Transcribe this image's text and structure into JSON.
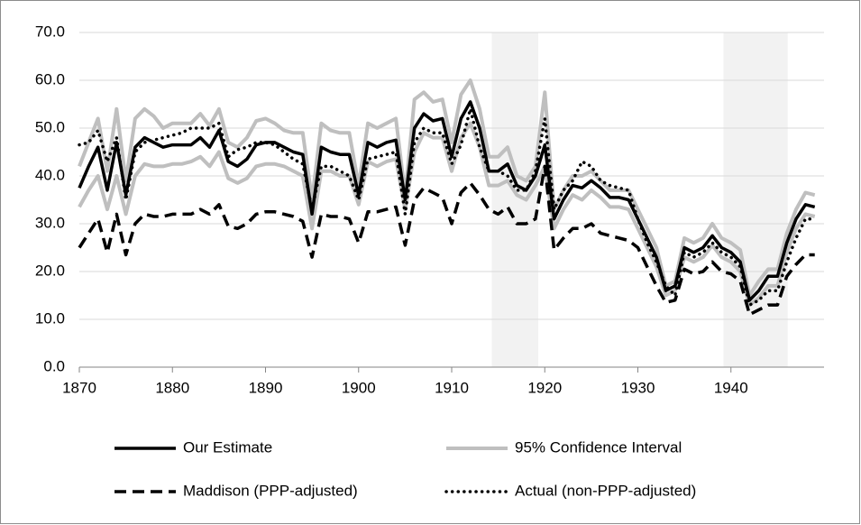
{
  "chart_data": {
    "type": "line",
    "x": [
      1870,
      1871,
      1872,
      1873,
      1874,
      1875,
      1876,
      1877,
      1878,
      1879,
      1880,
      1881,
      1882,
      1883,
      1884,
      1885,
      1886,
      1887,
      1888,
      1889,
      1890,
      1891,
      1892,
      1893,
      1894,
      1895,
      1896,
      1897,
      1898,
      1899,
      1900,
      1901,
      1902,
      1903,
      1904,
      1905,
      1906,
      1907,
      1908,
      1909,
      1910,
      1911,
      1912,
      1913,
      1914,
      1915,
      1916,
      1917,
      1918,
      1919,
      1920,
      1921,
      1922,
      1923,
      1924,
      1925,
      1926,
      1927,
      1928,
      1929,
      1930,
      1931,
      1932,
      1933,
      1934,
      1935,
      1936,
      1937,
      1938,
      1939,
      1940,
      1941,
      1942,
      1943,
      1944,
      1945,
      1946,
      1947,
      1948,
      1949
    ],
    "series": [
      {
        "name": "95% Confidence Interval",
        "color": "#bfbfbf",
        "style": "solid",
        "values": [
          42,
          47,
          52,
          41,
          54,
          39,
          52,
          54,
          52.5,
          50,
          51,
          51,
          51,
          53,
          50.5,
          54,
          47,
          46,
          48,
          51.5,
          52,
          51,
          49.5,
          49,
          49,
          35,
          51,
          49.5,
          49,
          49,
          38,
          51,
          50,
          51,
          52,
          36,
          56,
          57.5,
          55.5,
          56,
          47,
          57,
          60,
          54,
          44,
          44,
          46,
          40,
          39,
          42,
          57.5,
          33,
          37,
          40,
          40,
          41,
          39,
          37,
          37,
          37,
          33,
          29,
          25,
          17,
          18,
          27,
          26,
          27,
          30,
          27,
          26,
          24.5,
          15,
          18,
          20.5,
          20.5,
          28,
          33,
          36.5,
          36
        ],
        "lower": [
          33.5,
          37,
          40,
          33,
          40,
          32,
          40,
          42.5,
          42,
          42,
          42.5,
          42.5,
          43,
          44,
          42,
          45,
          39.5,
          38.5,
          39.5,
          42,
          42.5,
          42.5,
          42,
          41,
          40,
          29,
          41,
          41,
          40,
          40,
          34,
          43,
          42,
          43,
          43.5,
          33,
          45,
          49,
          48,
          48,
          41,
          48,
          51,
          46,
          38,
          38,
          39,
          36,
          35,
          38,
          42,
          29,
          33,
          36,
          35,
          37,
          35.5,
          33.5,
          33.5,
          33,
          29,
          25,
          21,
          15,
          16,
          23,
          22,
          23,
          25.5,
          23,
          22,
          20,
          13,
          14.5,
          17,
          17,
          24,
          29,
          32,
          31.5
        ]
      },
      {
        "name": "Maddison (PPP-adjusted)",
        "color": "#000000",
        "style": "dashed",
        "values": [
          25,
          28,
          31,
          24,
          32,
          23.5,
          30,
          32,
          31.5,
          31.5,
          32,
          32,
          32,
          33,
          32,
          34,
          29.5,
          29,
          30,
          32,
          32.5,
          32.5,
          32,
          31.5,
          30.5,
          23,
          32,
          31.5,
          31.5,
          31,
          26,
          32.5,
          32.5,
          33,
          33.5,
          25.5,
          35,
          37.5,
          36.5,
          35.5,
          30,
          36.5,
          38.5,
          36,
          33,
          32,
          33.5,
          30,
          30,
          31,
          42,
          24.5,
          27,
          29,
          29,
          30,
          28,
          27.5,
          27,
          26.5,
          25,
          21,
          17,
          13.5,
          14,
          20.5,
          19.5,
          20,
          22,
          20,
          19.5,
          18,
          11,
          12,
          13,
          13,
          19,
          21.5,
          23.5,
          23.5
        ]
      },
      {
        "name": "Actual (non-PPP-adjusted)",
        "color": "#000000",
        "style": "dotted",
        "values": [
          46.5,
          47,
          49.5,
          43,
          48,
          35,
          45,
          47,
          47.5,
          48,
          48.5,
          49,
          50,
          50,
          50,
          51,
          44,
          45.5,
          46,
          47,
          47,
          46.5,
          45,
          43.5,
          42.5,
          33,
          42,
          42,
          41,
          40,
          35,
          43.5,
          44,
          44.5,
          45,
          32,
          47,
          50,
          49,
          49,
          42.5,
          46.5,
          54,
          46,
          41,
          41,
          40,
          37,
          37,
          41,
          52,
          33,
          37,
          39,
          43,
          42,
          39,
          38,
          37.5,
          37,
          31,
          26,
          22,
          17,
          15,
          24,
          23,
          24,
          26,
          24,
          23,
          21,
          13,
          14,
          16,
          16,
          22,
          27,
          31,
          31
        ]
      },
      {
        "name": "Our Estimate",
        "color": "#000000",
        "style": "solid",
        "values": [
          37.5,
          42,
          46,
          37,
          47,
          36,
          46,
          48,
          47,
          46,
          46.5,
          46.5,
          46.5,
          48,
          46,
          49.5,
          43,
          42,
          43.5,
          46.5,
          47,
          47,
          46,
          45,
          44.5,
          32,
          46,
          45,
          44.5,
          44.5,
          36,
          47,
          46,
          47,
          47.5,
          35,
          50,
          53,
          51.5,
          52,
          44,
          52,
          55.5,
          50,
          41,
          41,
          42.5,
          38,
          37,
          40,
          46.5,
          31,
          35,
          38,
          37.5,
          39,
          37.5,
          35.5,
          35.5,
          35,
          31,
          27,
          23,
          16,
          17,
          25,
          24,
          25,
          27.5,
          25,
          24,
          22,
          14,
          16,
          19,
          19,
          26,
          31,
          34,
          33.5
        ]
      }
    ],
    "legend_order": [
      3,
      0,
      1,
      2
    ],
    "shaded_ranges": [
      [
        1914.3,
        1919.3
      ],
      [
        1939.2,
        1946.1
      ]
    ],
    "shade_color": "#f2f2f2",
    "xlim": [
      1870,
      1950
    ],
    "xticks": [
      1870,
      1880,
      1890,
      1900,
      1910,
      1920,
      1930,
      1940
    ],
    "ylim": [
      0,
      70
    ],
    "yticks": [
      {
        "value": 0,
        "label": "0.0"
      },
      {
        "value": 10,
        "label": "10.0"
      },
      {
        "value": 20,
        "label": "20.0"
      },
      {
        "value": 30,
        "label": "30.0"
      },
      {
        "value": 40,
        "label": "40.0"
      },
      {
        "value": 50,
        "label": "50.0"
      },
      {
        "value": 60,
        "label": "60.0"
      },
      {
        "value": 70,
        "label": "70.0"
      }
    ],
    "grid": true
  }
}
